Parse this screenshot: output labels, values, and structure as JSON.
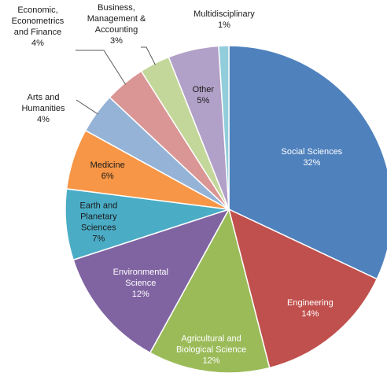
{
  "chart_data": {
    "type": "pie",
    "title": "",
    "slices": [
      {
        "label": [
          "Social Sciences"
        ],
        "value": 32,
        "value_label": "32%",
        "color": "#4F81BD",
        "text_color": "#ffffff"
      },
      {
        "label": [
          "Engineering"
        ],
        "value": 14,
        "value_label": "14%",
        "color": "#C0504D",
        "text_color": "#ffffff"
      },
      {
        "label": [
          "Agricultural and",
          "Biological Science"
        ],
        "value": 12,
        "value_label": "12%",
        "color": "#9BBB59",
        "text_color": "#ffffff"
      },
      {
        "label": [
          "Environmental",
          "Science"
        ],
        "value": 12,
        "value_label": "12%",
        "color": "#8064A2",
        "text_color": "#ffffff"
      },
      {
        "label": [
          "Earth and",
          "Planetary",
          "Sciences"
        ],
        "value": 7,
        "value_label": "7%",
        "color": "#4BACC6",
        "text_color": "#1a1a1a"
      },
      {
        "label": [
          "Medicine"
        ],
        "value": 6,
        "value_label": "6%",
        "color": "#F79646",
        "text_color": "#1a1a1a"
      },
      {
        "label": [
          "Arts and",
          "Humanities"
        ],
        "value": 4,
        "value_label": "4%",
        "color": "#95B3D7",
        "text_color": "#1a1a1a"
      },
      {
        "label": [
          "Economic,",
          "Econometrics",
          "and Finance"
        ],
        "value": 4,
        "value_label": "4%",
        "color": "#DA9694",
        "text_color": "#1a1a1a"
      },
      {
        "label": [
          "Business,",
          "Management &",
          "Accounting"
        ],
        "value": 3,
        "value_label": "3%",
        "color": "#C4D79B",
        "text_color": "#1a1a1a"
      },
      {
        "label": [
          "Other"
        ],
        "value": 5,
        "value_label": "5%",
        "color": "#B1A0C7",
        "text_color": "#1a1a1a"
      },
      {
        "label": [
          "Multidisciplinary"
        ],
        "value": 1,
        "value_label": "1%",
        "color": "#92CDDC",
        "text_color": "#1a1a1a"
      }
    ]
  }
}
